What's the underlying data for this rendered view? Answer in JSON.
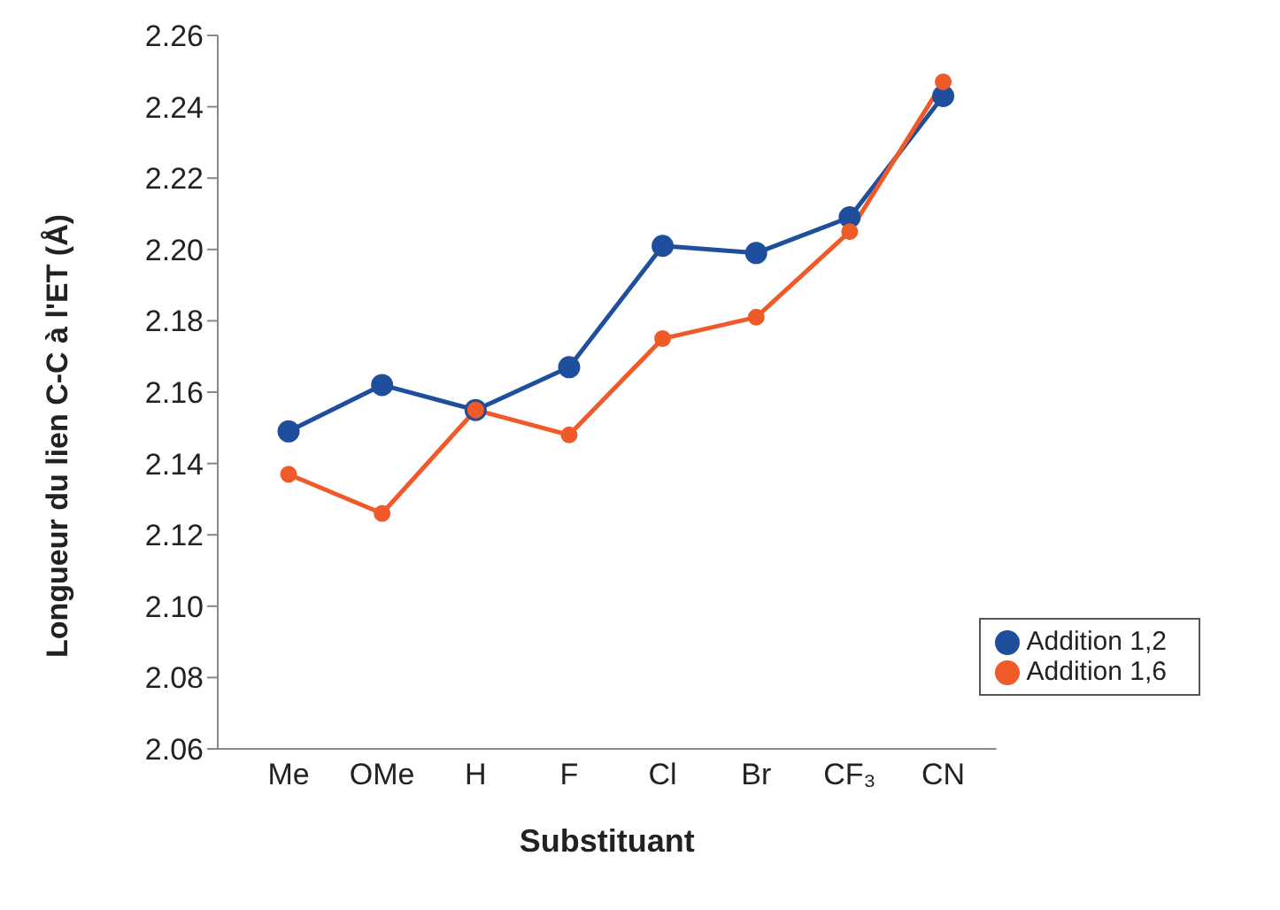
{
  "chart_data": {
    "type": "line",
    "xlabel": "Substituant",
    "ylabel": "Longueur du lien C-C à l'ET (Å)",
    "categories": [
      "Me",
      "OMe",
      "H",
      "F",
      "Cl",
      "Br",
      "CF₃",
      "CN"
    ],
    "series": [
      {
        "name": "Addition 1,2",
        "color": "#1f4e9c",
        "values": [
          2.149,
          2.162,
          2.155,
          2.167,
          2.201,
          2.199,
          2.209,
          2.243
        ]
      },
      {
        "name": "Addition 1,6",
        "color": "#f05a28",
        "values": [
          2.137,
          2.126,
          2.155,
          2.148,
          2.175,
          2.181,
          2.205,
          2.247
        ]
      }
    ],
    "ylim": [
      2.06,
      2.26
    ],
    "yticks": [
      2.06,
      2.08,
      {
        "value": 2.1,
        "label": "2.10"
      },
      2.12,
      2.14,
      2.16,
      2.18,
      {
        "value": 2.2,
        "label": "2.20"
      },
      2.22,
      2.24,
      2.26
    ],
    "grid": false,
    "legend": "bottom right",
    "marker": "circle",
    "line_style": "solid"
  }
}
